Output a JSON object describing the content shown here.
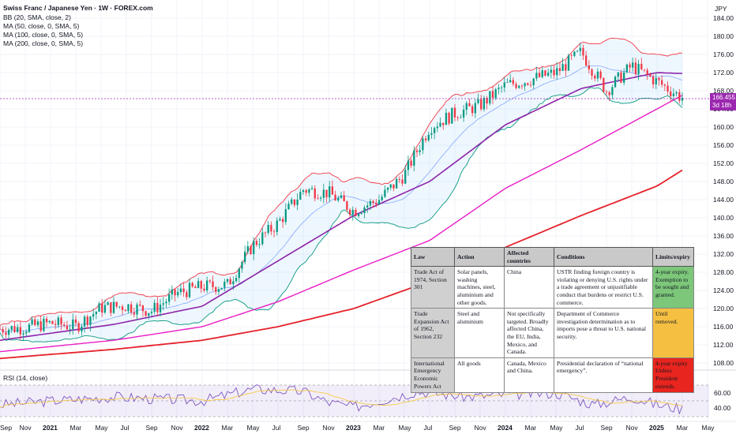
{
  "header": {
    "title": "Swiss Franc / Japanese Yen · 1W · FOREX.com",
    "indicators": [
      "BB (20, SMA, close, 2)",
      "MA (50, close, 0, SMA, 5)",
      "MA (100, close, 0, SMA, 5)",
      "MA (200, close, 0, SMA, 5)"
    ],
    "currency": "JPY"
  },
  "price_axis": {
    "ticks": [
      "184.00",
      "180.00",
      "176.00",
      "172.00",
      "168.00",
      "164.00",
      "160.00",
      "156.00",
      "152.00",
      "148.00",
      "144.00",
      "140.00",
      "136.00",
      "132.00",
      "128.00",
      "124.00",
      "120.00",
      "116.00",
      "112.00",
      "108.00"
    ],
    "current_price": "166.455",
    "countdown": "3d 18h"
  },
  "rsi": {
    "label": "RSI (14, close)",
    "ticks": [
      "60.00",
      "40.00"
    ],
    "upper": 70,
    "middle": 50,
    "lower": 30
  },
  "time_axis": [
    "Sep",
    "Nov",
    "2021",
    "Mar",
    "May",
    "Jul",
    "Sep",
    "Nov",
    "2022",
    "Mar",
    "May",
    "Jul",
    "Sep",
    "Nov",
    "2023",
    "Mar",
    "May",
    "Jul",
    "Sep",
    "Nov",
    "2024",
    "Mar",
    "May",
    "Jul",
    "Sep",
    "Nov",
    "2025",
    "Mar",
    "May"
  ],
  "table": {
    "headers": [
      "Law",
      "Action",
      "Affected countries",
      "Conditions",
      "Limits/expiry"
    ],
    "rows": [
      {
        "law": "Trade Act of 1974, Section 301",
        "action": "Solar panels, washing machines, steel, aluminium and other goods.",
        "countries": "China",
        "conditions": "USTR finding foreign country is violating or denying U.S. rights under a trade agreement or unjustifiable conduct that burdens or restrict U.S. commerce.",
        "limits": "4-year expiry. Exemption to be sought and granted.",
        "color": "#7dc77a"
      },
      {
        "law": "Trade Expansion Act of 1962, Section 232",
        "action": "Steel and aluminium",
        "countries": "Not specifically targeted. Broadly affected China, the EU, India, Mexico, and Canada.",
        "conditions": "Department of Commerce investigation determination as to imports pose a threat to U.S. national security.",
        "limits": "Until removed.",
        "color": "#f5c042"
      },
      {
        "law": "International Emergency Economic Powers Act",
        "action": "All goods",
        "countries": "Canada, Mexico and China.",
        "conditions": "Presidential declaration of “national emergency”.",
        "limits": "4-year expiry Unless President extends.",
        "color": "#e8251e"
      }
    ]
  },
  "chart_data": {
    "type": "candlestick",
    "symbol": "Swiss Franc / Japanese Yen",
    "interval": "1W",
    "source": "FOREX.com",
    "y_axis_range": [
      106,
      186
    ],
    "x_range": [
      "2020-09",
      "2025-05"
    ],
    "weekly_close_path": [
      [
        "2020-09",
        115.5
      ],
      [
        "2020-11",
        115.8
      ],
      [
        "2021-01",
        116.8
      ],
      [
        "2021-03",
        116.0
      ],
      [
        "2021-05",
        120.2
      ],
      [
        "2021-07",
        120.6
      ],
      [
        "2021-09",
        119.5
      ],
      [
        "2021-11",
        123.4
      ],
      [
        "2022-01",
        124.8
      ],
      [
        "2022-03",
        125.2
      ],
      [
        "2022-05",
        134.0
      ],
      [
        "2022-07",
        138.8
      ],
      [
        "2022-09",
        146.2
      ],
      [
        "2022-11",
        145.5
      ],
      [
        "2023-01",
        141.5
      ],
      [
        "2023-03",
        144.0
      ],
      [
        "2023-05",
        149.5
      ],
      [
        "2023-07",
        160.0
      ],
      [
        "2023-09",
        163.0
      ],
      [
        "2023-11",
        164.8
      ],
      [
        "2024-01",
        169.2
      ],
      [
        "2024-03",
        170.5
      ],
      [
        "2024-05",
        172.0
      ],
      [
        "2024-07",
        176.5
      ],
      [
        "2024-09",
        168.0
      ],
      [
        "2024-11",
        173.5
      ],
      [
        "2025-01",
        170.0
      ],
      [
        "2025-03",
        166.455
      ]
    ],
    "ma50_path": [
      [
        "2020-09",
        113.0
      ],
      [
        "2021-06",
        116.5
      ],
      [
        "2022-01",
        120.5
      ],
      [
        "2022-07",
        130.5
      ],
      [
        "2023-01",
        140.5
      ],
      [
        "2023-07",
        148.0
      ],
      [
        "2024-01",
        160.5
      ],
      [
        "2024-07",
        168.5
      ],
      [
        "2025-01",
        172.0
      ],
      [
        "2025-03",
        171.8
      ]
    ],
    "ma100_path": [
      [
        "2020-09",
        110.5
      ],
      [
        "2021-06",
        113.0
      ],
      [
        "2022-01",
        116.0
      ],
      [
        "2022-07",
        121.5
      ],
      [
        "2023-01",
        128.5
      ],
      [
        "2023-07",
        135.0
      ],
      [
        "2024-01",
        146.5
      ],
      [
        "2024-07",
        155.0
      ],
      [
        "2025-01",
        164.0
      ],
      [
        "2025-03",
        167.0
      ]
    ],
    "ma200_path": [
      [
        "2020-09",
        109.0
      ],
      [
        "2021-06",
        111.0
      ],
      [
        "2022-01",
        113.0
      ],
      [
        "2022-07",
        116.0
      ],
      [
        "2023-01",
        120.0
      ],
      [
        "2023-07",
        126.0
      ],
      [
        "2024-01",
        133.5
      ],
      [
        "2024-07",
        140.5
      ],
      [
        "2025-01",
        147.0
      ],
      [
        "2025-03",
        150.5
      ]
    ],
    "rsi_path": [
      [
        "2020-09",
        45
      ],
      [
        "2021-01",
        50
      ],
      [
        "2021-06",
        55
      ],
      [
        "2022-01",
        50
      ],
      [
        "2022-05",
        65
      ],
      [
        "2022-09",
        62
      ],
      [
        "2022-11",
        48
      ],
      [
        "2023-01",
        42
      ],
      [
        "2023-06",
        62
      ],
      [
        "2023-10",
        55
      ],
      [
        "2024-01",
        58
      ],
      [
        "2024-05",
        60
      ],
      [
        "2024-08",
        45
      ],
      [
        "2024-11",
        55
      ],
      [
        "2025-01",
        45
      ],
      [
        "2025-03",
        40
      ]
    ]
  }
}
